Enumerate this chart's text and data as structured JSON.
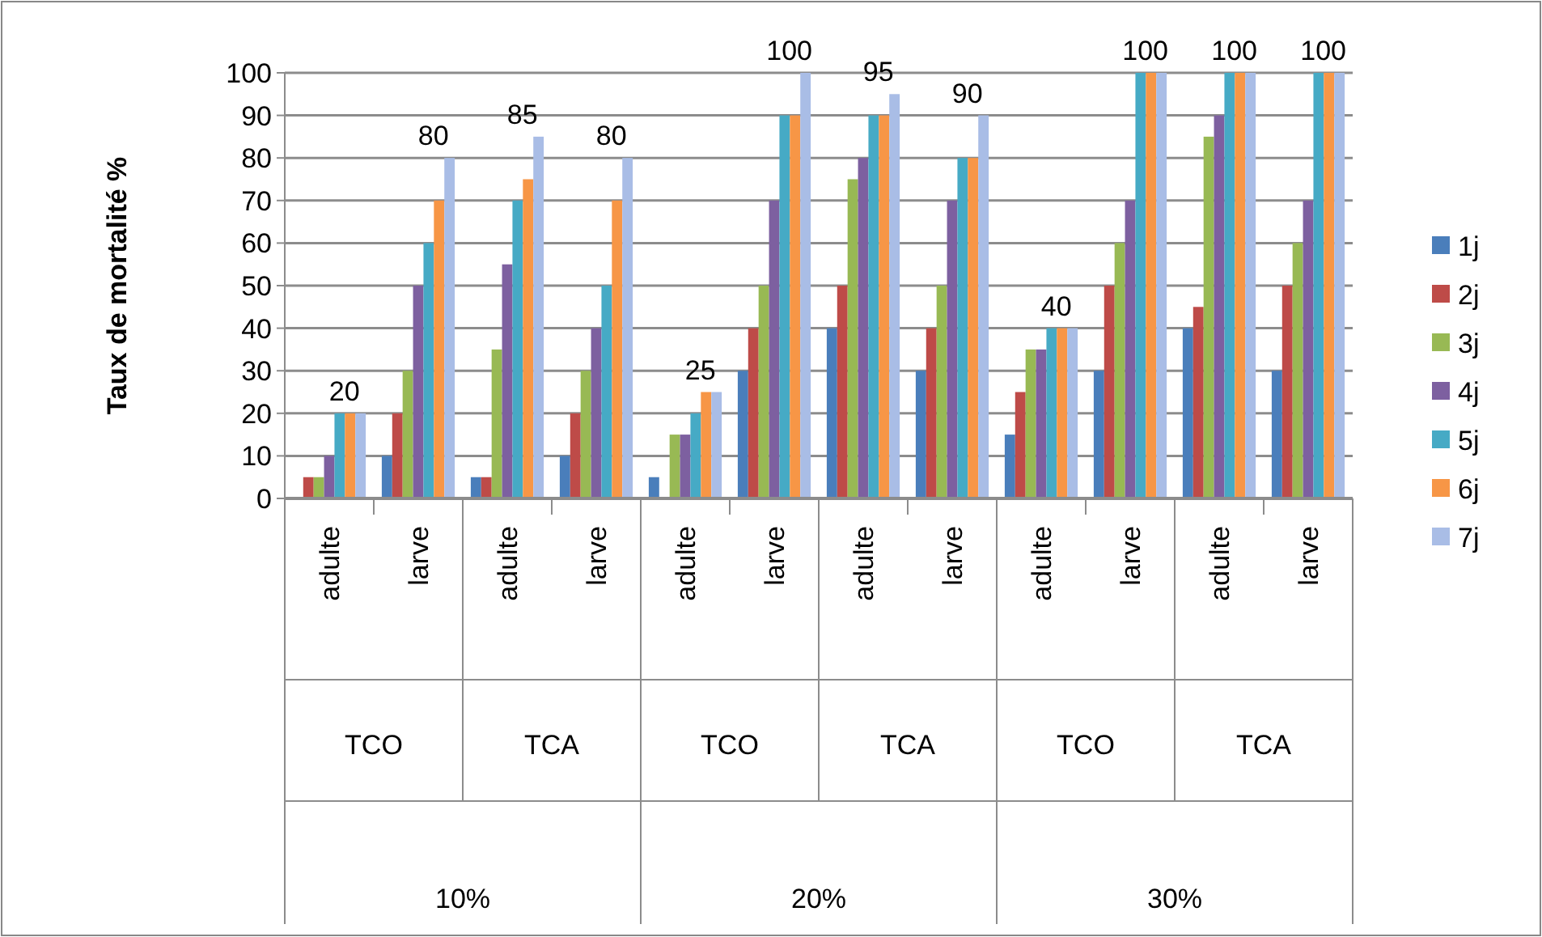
{
  "chart_data": {
    "type": "bar",
    "ylabel": "Taux de mortalité %",
    "categories": [
      "adulte",
      "larve",
      "adulte",
      "larve",
      "adulte",
      "larve",
      "adulte",
      "larve",
      "adulte",
      "larve",
      "adulte",
      "larve"
    ],
    "annotations": [
      "TCO",
      "TCA",
      "TCO",
      "TCA",
      "TCO",
      "TCA",
      "10%",
      "20%",
      "30%"
    ],
    "ylim": [
      0,
      100
    ],
    "yticks": [
      0,
      10,
      20,
      30,
      40,
      50,
      60,
      70,
      80,
      90,
      100
    ],
    "grid": "y",
    "legend": "right",
    "series": [
      {
        "name": "1j",
        "color": "#4a7ebb",
        "values": [
          0,
          10,
          5,
          10,
          5,
          30,
          40,
          30,
          15,
          30,
          40,
          30
        ]
      },
      {
        "name": "2j",
        "color": "#be4b48",
        "values": [
          5,
          20,
          5,
          20,
          0,
          40,
          50,
          40,
          25,
          50,
          45,
          50
        ]
      },
      {
        "name": "3j",
        "color": "#98b954",
        "values": [
          5,
          30,
          35,
          30,
          15,
          50,
          75,
          50,
          35,
          60,
          85,
          60
        ]
      },
      {
        "name": "4j",
        "color": "#7d60a0",
        "values": [
          10,
          50,
          55,
          40,
          15,
          70,
          80,
          70,
          35,
          70,
          90,
          70
        ]
      },
      {
        "name": "5j",
        "color": "#46aac5",
        "values": [
          20,
          60,
          70,
          50,
          20,
          90,
          90,
          80,
          40,
          100,
          100,
          100
        ]
      },
      {
        "name": "6j",
        "color": "#f79646",
        "values": [
          20,
          70,
          75,
          70,
          25,
          90,
          90,
          80,
          40,
          100,
          100,
          100
        ]
      },
      {
        "name": "7j",
        "color": "#a9bde6",
        "values": [
          20,
          80,
          85,
          80,
          25,
          100,
          95,
          90,
          40,
          100,
          100,
          100
        ],
        "value_labels": [
          "20",
          "80",
          "85",
          "80",
          "25",
          "100",
          "95",
          "90",
          "40",
          "100",
          "100",
          "100"
        ]
      }
    ]
  }
}
